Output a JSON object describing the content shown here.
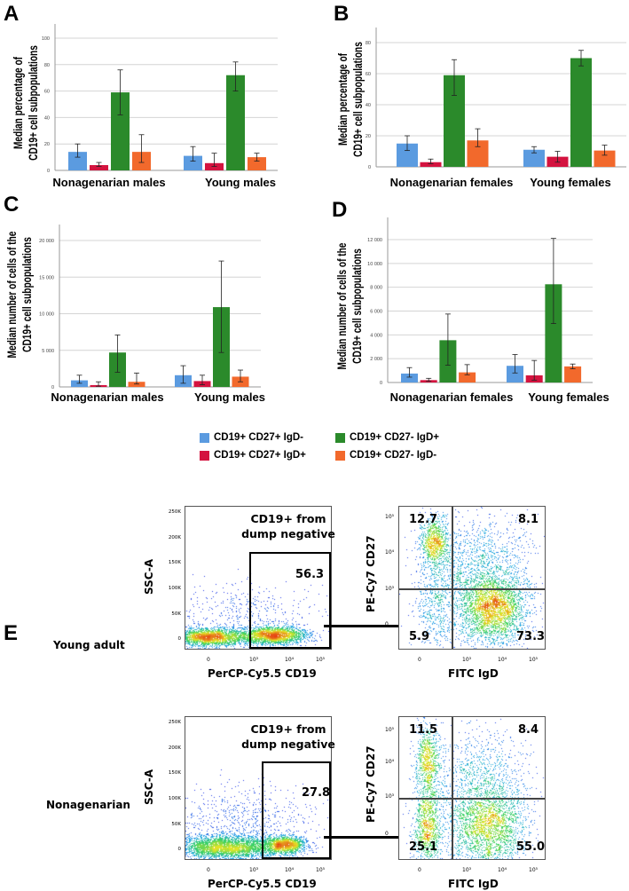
{
  "legend": [
    {
      "label": "CD19+ CD27+ IgD-",
      "color": "#5b9be0"
    },
    {
      "label": "CD19+ CD27+ IgD+",
      "color": "#d4133f"
    },
    {
      "label": "CD19+ CD27- IgD+",
      "color": "#2b8a2b"
    },
    {
      "label": "CD19+ CD27- IgD-",
      "color": "#f2692c"
    }
  ],
  "chart_data": [
    {
      "panel": "A",
      "type": "bar",
      "ylabel": [
        "Median percentage of",
        "CD19+ cell subpopulations"
      ],
      "categories": [
        "Nonagenarian males",
        "Young males"
      ],
      "yticks": [
        0,
        20,
        40,
        60,
        80,
        100
      ],
      "ytick_labels": [
        "0",
        "20",
        "40",
        "60",
        "80",
        "100"
      ],
      "ylim": [
        0,
        110
      ],
      "grid": true,
      "series": [
        {
          "name": "CD19+ CD27+ IgD-",
          "values": [
            14,
            11
          ],
          "err_low": [
            10,
            7
          ],
          "err_high": [
            20,
            18
          ]
        },
        {
          "name": "CD19+ CD27+ IgD+",
          "values": [
            4,
            5.5
          ],
          "err_low": [
            3,
            3
          ],
          "err_high": [
            6,
            13
          ]
        },
        {
          "name": "CD19+ CD27- IgD+",
          "values": [
            59,
            72
          ],
          "err_low": [
            42,
            60
          ],
          "err_high": [
            76,
            82
          ]
        },
        {
          "name": "CD19+ CD27- IgD-",
          "values": [
            14,
            10
          ],
          "err_low": [
            6,
            7
          ],
          "err_high": [
            27,
            13
          ]
        }
      ]
    },
    {
      "panel": "B",
      "type": "bar",
      "ylabel": [
        "Median percentage of",
        "CD19+ cell subpopulations"
      ],
      "categories": [
        "Nonagenarian females",
        "Young females"
      ],
      "yticks": [
        0,
        20,
        40,
        60,
        80
      ],
      "ytick_labels": [
        "0",
        "20",
        "40",
        "60",
        "80"
      ],
      "ylim": [
        0,
        89
      ],
      "grid": true,
      "series": [
        {
          "name": "CD19+ CD27+ IgD-",
          "values": [
            15,
            11
          ],
          "err_low": [
            10.5,
            9
          ],
          "err_high": [
            20,
            13
          ]
        },
        {
          "name": "CD19+ CD27+ IgD+",
          "values": [
            3,
            6.5
          ],
          "err_low": [
            2,
            3
          ],
          "err_high": [
            5,
            10
          ]
        },
        {
          "name": "CD19+ CD27- IgD+",
          "values": [
            59,
            70
          ],
          "err_low": [
            46,
            65
          ],
          "err_high": [
            69,
            75
          ]
        },
        {
          "name": "CD19+ CD27- IgD-",
          "values": [
            17,
            10.5
          ],
          "err_low": [
            13,
            7.5
          ],
          "err_high": [
            24.5,
            14
          ]
        }
      ]
    },
    {
      "panel": "C",
      "type": "bar",
      "ylabel": [
        "Median number of cells of the",
        "CD19+ cell subpopulations"
      ],
      "categories": [
        "Nonagenarian males",
        "Young males"
      ],
      "yticks": [
        0,
        5000,
        10000,
        15000,
        20000
      ],
      "ytick_labels": [
        "0",
        "5 000",
        "10 000",
        "15 000",
        "20 000"
      ],
      "ylim": [
        0,
        22000
      ],
      "grid": true,
      "series": [
        {
          "name": "CD19+ CD27+ IgD-",
          "values": [
            900,
            1600
          ],
          "err_low": [
            500,
            500
          ],
          "err_high": [
            1600,
            2900
          ]
        },
        {
          "name": "CD19+ CD27+ IgD+",
          "values": [
            250,
            800
          ],
          "err_low": [
            100,
            300
          ],
          "err_high": [
            700,
            1600
          ]
        },
        {
          "name": "CD19+ CD27- IgD+",
          "values": [
            4700,
            10900
          ],
          "err_low": [
            2000,
            4700
          ],
          "err_high": [
            7100,
            17200
          ]
        },
        {
          "name": "CD19+ CD27- IgD-",
          "values": [
            700,
            1400
          ],
          "err_low": [
            400,
            700
          ],
          "err_high": [
            1900,
            2300
          ]
        }
      ]
    },
    {
      "panel": "D",
      "type": "bar",
      "ylabel": [
        "Median number of cells of the",
        "CD19+ cell subpopulations"
      ],
      "categories": [
        "Nonagenarian females",
        "Young females"
      ],
      "yticks": [
        0,
        2000,
        4000,
        6000,
        8000,
        10000,
        12000
      ],
      "ytick_labels": [
        "0",
        "2 000",
        "4 000",
        "6 000",
        "8 000",
        "10 000",
        "12 000"
      ],
      "ylim": [
        0,
        13800
      ],
      "grid": true,
      "series": [
        {
          "name": "CD19+ CD27+ IgD-",
          "values": [
            750,
            1400
          ],
          "err_low": [
            450,
            800
          ],
          "err_high": [
            1250,
            2350
          ]
        },
        {
          "name": "CD19+ CD27+ IgD+",
          "values": [
            200,
            600
          ],
          "err_low": [
            100,
            200
          ],
          "err_high": [
            350,
            1850
          ]
        },
        {
          "name": "CD19+ CD27- IgD+",
          "values": [
            3550,
            8250
          ],
          "err_low": [
            1450,
            4950
          ],
          "err_high": [
            5750,
            12100
          ]
        },
        {
          "name": "CD19+ CD27- IgD-",
          "values": [
            850,
            1350
          ],
          "err_low": [
            650,
            1150
          ],
          "err_high": [
            1500,
            1550
          ]
        }
      ]
    }
  ],
  "panelE": {
    "letter": "E",
    "gate_title": [
      "CD19+ from",
      "dump negative"
    ],
    "ssc_label": "SSC-A",
    "cd19_label": "PerCP-Cy5.5 CD19",
    "cd27_label": "PE-Cy7 CD27",
    "igd_label": "FITC IgD",
    "ssc_ticks": [
      "250K",
      "200K",
      "150K",
      "100K",
      "50K",
      "0"
    ],
    "log_ticks_x": [
      "0",
      "10³",
      "10⁴",
      "10⁵"
    ],
    "log_ticks_y": [
      "10⁵",
      "10⁴",
      "10³",
      "0"
    ],
    "rows": [
      {
        "label": "Young adult",
        "gate_pct": "56.3",
        "quadrants": {
          "ul": "12.7",
          "ur": "8.1",
          "ll": "5.9",
          "lr": "73.3"
        }
      },
      {
        "label": "Nonagenarian",
        "gate_pct": "27.8",
        "quadrants": {
          "ul": "11.5",
          "ur": "8.4",
          "ll": "25.1",
          "lr": "55.0"
        }
      }
    ]
  }
}
